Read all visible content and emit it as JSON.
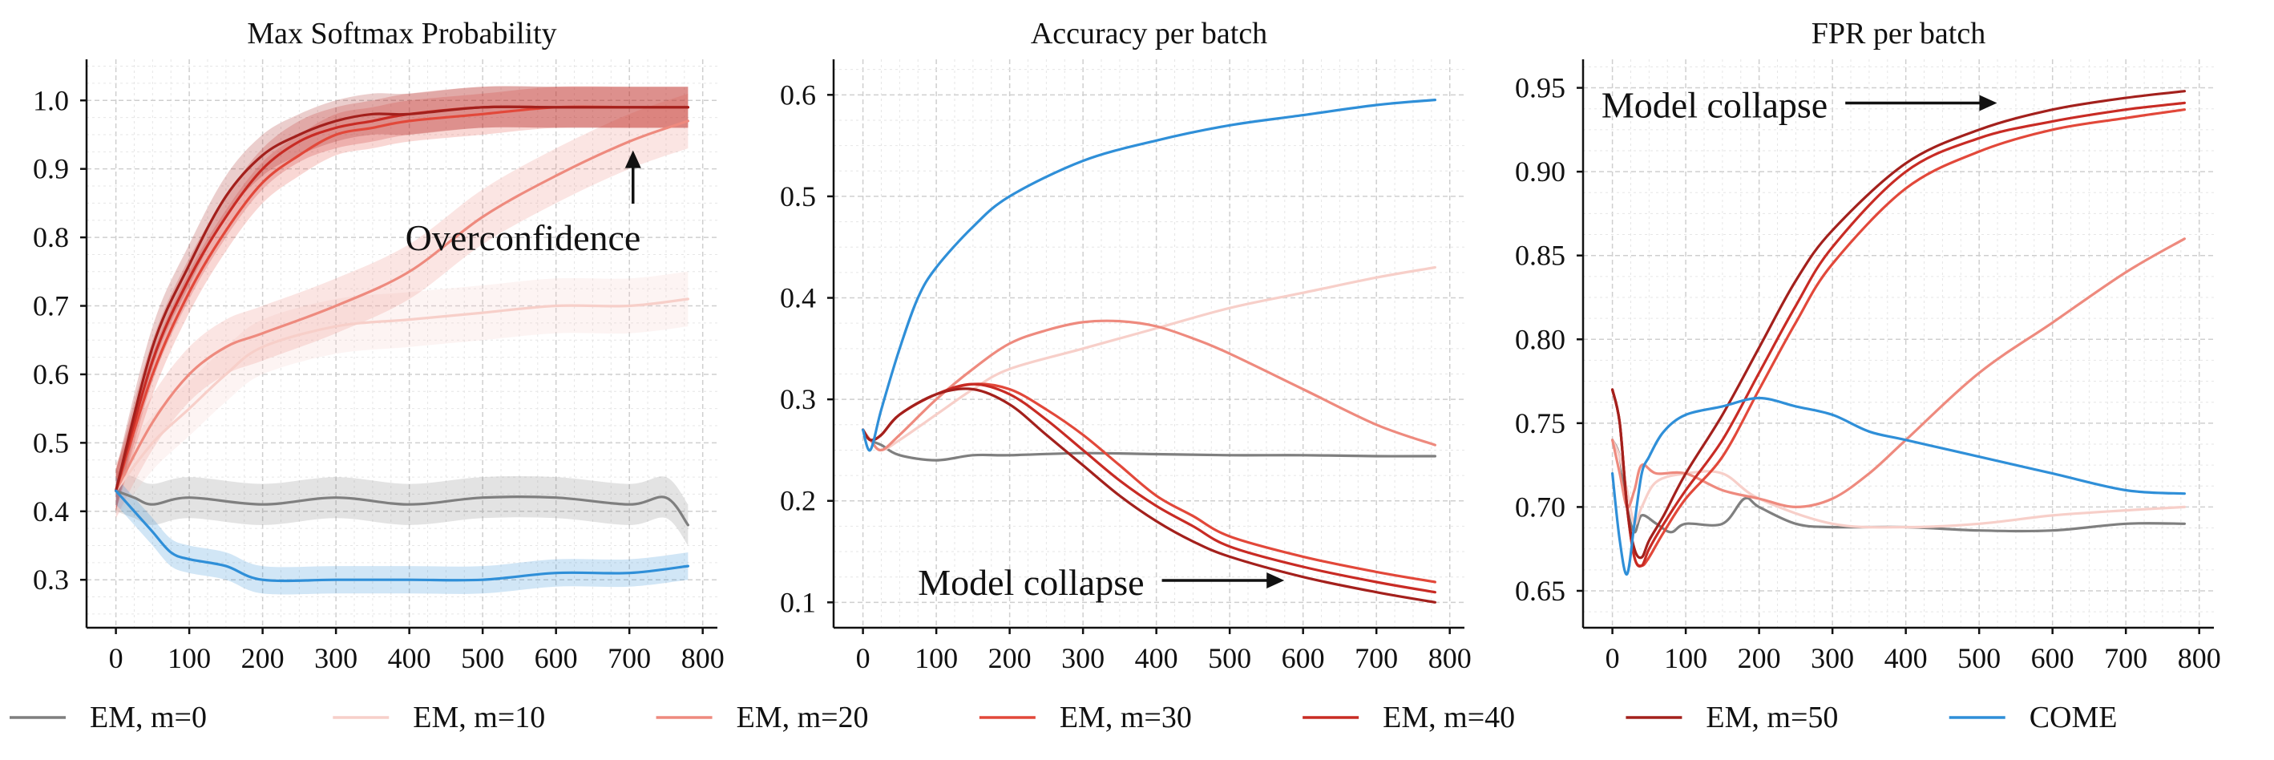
{
  "colors": {
    "EM, m=0": "#7f7f7f",
    "EM, m=10": "#f7cfc9",
    "EM, m=20": "#ee8a7e",
    "EM, m=30": "#e2483a",
    "EM, m=40": "#c82b24",
    "EM, m=50": "#a3201c",
    "COME": "#2f8fd8"
  },
  "legend": {
    "entries": [
      "EM, m=0",
      "EM, m=10",
      "EM, m=20",
      "EM, m=30",
      "EM, m=40",
      "EM, m=50",
      "COME"
    ]
  },
  "chart_data": [
    {
      "type": "line",
      "title": "Max Softmax Probability",
      "xlabel": "",
      "ylabel": "",
      "xlim": [
        -40,
        820
      ],
      "ylim": [
        0.23,
        1.06
      ],
      "xticks": [
        0,
        100,
        200,
        300,
        400,
        500,
        600,
        700,
        800
      ],
      "yticks": [
        0.3,
        0.4,
        0.5,
        0.6,
        0.7,
        0.8,
        0.9,
        1.0
      ],
      "ytick_labels": [
        "0.3",
        "0.4",
        "0.5",
        "0.6",
        "0.7",
        "0.8",
        "0.9",
        "1.0"
      ],
      "shaded_band": true,
      "annotations": [
        {
          "text": "Overconfidence",
          "x": 555,
          "y": 0.8,
          "arrow": "up",
          "arrow_to": [
            705,
            0.92
          ]
        }
      ],
      "series": [
        {
          "name": "EM, m=0",
          "x": [
            0,
            25,
            50,
            100,
            200,
            300,
            400,
            500,
            600,
            700,
            750,
            780
          ],
          "y": [
            0.43,
            0.42,
            0.41,
            0.42,
            0.41,
            0.42,
            0.41,
            0.42,
            0.42,
            0.41,
            0.42,
            0.38
          ],
          "band": 0.03
        },
        {
          "name": "EM, m=10",
          "x": [
            0,
            50,
            100,
            150,
            200,
            300,
            400,
            500,
            600,
            700,
            780
          ],
          "y": [
            0.43,
            0.5,
            0.55,
            0.6,
            0.64,
            0.67,
            0.68,
            0.69,
            0.7,
            0.7,
            0.71
          ],
          "band": 0.04
        },
        {
          "name": "EM, m=20",
          "x": [
            0,
            50,
            100,
            150,
            200,
            300,
            400,
            500,
            600,
            700,
            780
          ],
          "y": [
            0.43,
            0.53,
            0.6,
            0.64,
            0.66,
            0.7,
            0.75,
            0.83,
            0.89,
            0.94,
            0.97
          ],
          "band": 0.04
        },
        {
          "name": "EM, m=30",
          "x": [
            0,
            50,
            100,
            150,
            200,
            250,
            300,
            350,
            400,
            500,
            600,
            700,
            780
          ],
          "y": [
            0.43,
            0.6,
            0.72,
            0.81,
            0.88,
            0.92,
            0.95,
            0.96,
            0.97,
            0.98,
            0.99,
            0.99,
            0.99
          ],
          "band": 0.03
        },
        {
          "name": "EM, m=40",
          "x": [
            0,
            50,
            100,
            150,
            200,
            250,
            300,
            350,
            400,
            500,
            600,
            700,
            780
          ],
          "y": [
            0.43,
            0.62,
            0.74,
            0.83,
            0.9,
            0.94,
            0.96,
            0.97,
            0.98,
            0.99,
            0.99,
            0.99,
            0.99
          ],
          "band": 0.03
        },
        {
          "name": "EM, m=50",
          "x": [
            0,
            50,
            100,
            150,
            200,
            250,
            300,
            350,
            400,
            500,
            600,
            700,
            780
          ],
          "y": [
            0.43,
            0.64,
            0.76,
            0.86,
            0.92,
            0.95,
            0.97,
            0.98,
            0.98,
            0.99,
            0.99,
            0.99,
            0.99
          ],
          "band": 0.03
        },
        {
          "name": "COME",
          "x": [
            0,
            25,
            50,
            75,
            100,
            150,
            200,
            300,
            400,
            500,
            600,
            700,
            780
          ],
          "y": [
            0.43,
            0.4,
            0.37,
            0.34,
            0.33,
            0.32,
            0.3,
            0.3,
            0.3,
            0.3,
            0.31,
            0.31,
            0.32
          ],
          "band": 0.02
        }
      ]
    },
    {
      "type": "line",
      "title": "Accuracy per batch",
      "xlabel": "",
      "ylabel": "",
      "xlim": [
        -40,
        820
      ],
      "ylim": [
        0.075,
        0.635
      ],
      "xticks": [
        0,
        100,
        200,
        300,
        400,
        500,
        600,
        700,
        800
      ],
      "yticks": [
        0.1,
        0.2,
        0.3,
        0.4,
        0.5,
        0.6
      ],
      "ytick_labels": [
        "0.1",
        "0.2",
        "0.3",
        "0.4",
        "0.5",
        "0.6"
      ],
      "shaded_band": false,
      "annotations": [
        {
          "text": "Model collapse",
          "x": 75,
          "y": 0.12,
          "arrow": "right",
          "arrow_to": [
            570,
            0.12
          ]
        }
      ],
      "series": [
        {
          "name": "EM, m=0",
          "x": [
            0,
            10,
            25,
            50,
            100,
            150,
            200,
            300,
            400,
            500,
            600,
            700,
            780
          ],
          "y": [
            0.27,
            0.26,
            0.255,
            0.245,
            0.24,
            0.245,
            0.245,
            0.247,
            0.246,
            0.245,
            0.245,
            0.244,
            0.244
          ],
          "band": 0
        },
        {
          "name": "EM, m=10",
          "x": [
            0,
            10,
            25,
            50,
            100,
            150,
            200,
            300,
            400,
            500,
            600,
            700,
            780
          ],
          "y": [
            0.27,
            0.26,
            0.25,
            0.26,
            0.285,
            0.31,
            0.33,
            0.35,
            0.37,
            0.39,
            0.405,
            0.42,
            0.43
          ],
          "band": 0
        },
        {
          "name": "EM, m=20",
          "x": [
            0,
            10,
            25,
            50,
            100,
            150,
            200,
            250,
            300,
            350,
            400,
            450,
            500,
            600,
            700,
            780
          ],
          "y": [
            0.27,
            0.26,
            0.25,
            0.265,
            0.3,
            0.33,
            0.355,
            0.368,
            0.376,
            0.377,
            0.372,
            0.36,
            0.345,
            0.31,
            0.275,
            0.255
          ],
          "band": 0
        },
        {
          "name": "EM, m=30",
          "x": [
            0,
            10,
            25,
            50,
            100,
            150,
            200,
            250,
            300,
            350,
            400,
            450,
            500,
            600,
            700,
            780
          ],
          "y": [
            0.27,
            0.26,
            0.265,
            0.285,
            0.305,
            0.315,
            0.31,
            0.29,
            0.265,
            0.235,
            0.205,
            0.185,
            0.165,
            0.145,
            0.13,
            0.12
          ],
          "band": 0
        },
        {
          "name": "EM, m=40",
          "x": [
            0,
            10,
            25,
            50,
            100,
            150,
            200,
            250,
            300,
            350,
            400,
            450,
            500,
            600,
            700,
            780
          ],
          "y": [
            0.27,
            0.26,
            0.265,
            0.285,
            0.305,
            0.315,
            0.305,
            0.28,
            0.25,
            0.22,
            0.195,
            0.175,
            0.155,
            0.135,
            0.12,
            0.11
          ],
          "band": 0
        },
        {
          "name": "EM, m=50",
          "x": [
            0,
            10,
            25,
            50,
            100,
            150,
            200,
            250,
            300,
            350,
            400,
            450,
            500,
            600,
            700,
            780
          ],
          "y": [
            0.27,
            0.26,
            0.265,
            0.285,
            0.305,
            0.31,
            0.295,
            0.265,
            0.235,
            0.205,
            0.18,
            0.16,
            0.145,
            0.125,
            0.11,
            0.1
          ],
          "band": 0
        },
        {
          "name": "COME",
          "x": [
            0,
            10,
            25,
            50,
            75,
            100,
            150,
            200,
            300,
            400,
            500,
            600,
            700,
            780
          ],
          "y": [
            0.27,
            0.25,
            0.29,
            0.35,
            0.4,
            0.43,
            0.47,
            0.5,
            0.535,
            0.555,
            0.57,
            0.58,
            0.59,
            0.595
          ],
          "band": 0
        }
      ]
    },
    {
      "type": "line",
      "title": "FPR per batch",
      "xlabel": "",
      "ylabel": "",
      "xlim": [
        -40,
        820
      ],
      "ylim": [
        0.628,
        0.967
      ],
      "xticks": [
        0,
        100,
        200,
        300,
        400,
        500,
        600,
        700,
        800
      ],
      "yticks": [
        0.65,
        0.7,
        0.75,
        0.8,
        0.85,
        0.9,
        0.95
      ],
      "ytick_labels": [
        "0.65",
        "0.70",
        "0.75",
        "0.80",
        "0.85",
        "0.90",
        "0.95"
      ],
      "shaded_band": false,
      "annotations": [
        {
          "text": "Model collapse",
          "x": -15,
          "y": 0.94,
          "arrow": "right",
          "arrow_to": [
            520,
            0.94
          ]
        }
      ],
      "series": [
        {
          "name": "EM, m=0",
          "x": [
            0,
            10,
            20,
            30,
            40,
            60,
            80,
            100,
            150,
            180,
            200,
            250,
            300,
            400,
            500,
            600,
            700,
            780
          ],
          "y": [
            0.74,
            0.73,
            0.7,
            0.685,
            0.695,
            0.69,
            0.685,
            0.69,
            0.69,
            0.705,
            0.7,
            0.69,
            0.688,
            0.688,
            0.686,
            0.686,
            0.69,
            0.69
          ],
          "band": 0
        },
        {
          "name": "EM, m=10",
          "x": [
            0,
            10,
            20,
            30,
            40,
            60,
            100,
            150,
            200,
            300,
            400,
            500,
            600,
            700,
            780
          ],
          "y": [
            0.74,
            0.73,
            0.71,
            0.69,
            0.7,
            0.715,
            0.72,
            0.72,
            0.705,
            0.69,
            0.688,
            0.69,
            0.695,
            0.698,
            0.7
          ],
          "band": 0
        },
        {
          "name": "EM, m=20",
          "x": [
            0,
            10,
            20,
            30,
            40,
            60,
            100,
            150,
            200,
            250,
            300,
            350,
            400,
            500,
            600,
            700,
            780
          ],
          "y": [
            0.74,
            0.72,
            0.7,
            0.71,
            0.725,
            0.72,
            0.72,
            0.71,
            0.705,
            0.7,
            0.705,
            0.72,
            0.74,
            0.78,
            0.81,
            0.84,
            0.86
          ],
          "band": 0
        },
        {
          "name": "EM, m=30",
          "x": [
            0,
            10,
            20,
            30,
            40,
            50,
            70,
            100,
            150,
            200,
            250,
            300,
            400,
            500,
            600,
            700,
            780
          ],
          "y": [
            0.77,
            0.75,
            0.7,
            0.67,
            0.665,
            0.67,
            0.685,
            0.705,
            0.73,
            0.77,
            0.81,
            0.845,
            0.89,
            0.912,
            0.925,
            0.932,
            0.937
          ],
          "band": 0
        },
        {
          "name": "EM, m=40",
          "x": [
            0,
            10,
            20,
            30,
            40,
            50,
            70,
            100,
            150,
            200,
            250,
            300,
            400,
            500,
            600,
            700,
            780
          ],
          "y": [
            0.77,
            0.75,
            0.7,
            0.67,
            0.665,
            0.675,
            0.69,
            0.71,
            0.74,
            0.78,
            0.82,
            0.855,
            0.9,
            0.92,
            0.93,
            0.937,
            0.941
          ],
          "band": 0
        },
        {
          "name": "EM, m=50",
          "x": [
            0,
            10,
            20,
            30,
            40,
            50,
            70,
            100,
            150,
            200,
            250,
            300,
            400,
            500,
            600,
            700,
            780
          ],
          "y": [
            0.77,
            0.75,
            0.7,
            0.675,
            0.67,
            0.68,
            0.695,
            0.72,
            0.755,
            0.795,
            0.835,
            0.865,
            0.905,
            0.925,
            0.937,
            0.944,
            0.948
          ],
          "band": 0
        },
        {
          "name": "COME",
          "x": [
            0,
            10,
            20,
            30,
            40,
            50,
            70,
            100,
            150,
            200,
            250,
            300,
            350,
            400,
            500,
            600,
            700,
            780
          ],
          "y": [
            0.72,
            0.68,
            0.66,
            0.69,
            0.72,
            0.73,
            0.745,
            0.755,
            0.76,
            0.765,
            0.76,
            0.755,
            0.745,
            0.74,
            0.73,
            0.72,
            0.71,
            0.708
          ],
          "band": 0
        }
      ]
    }
  ]
}
